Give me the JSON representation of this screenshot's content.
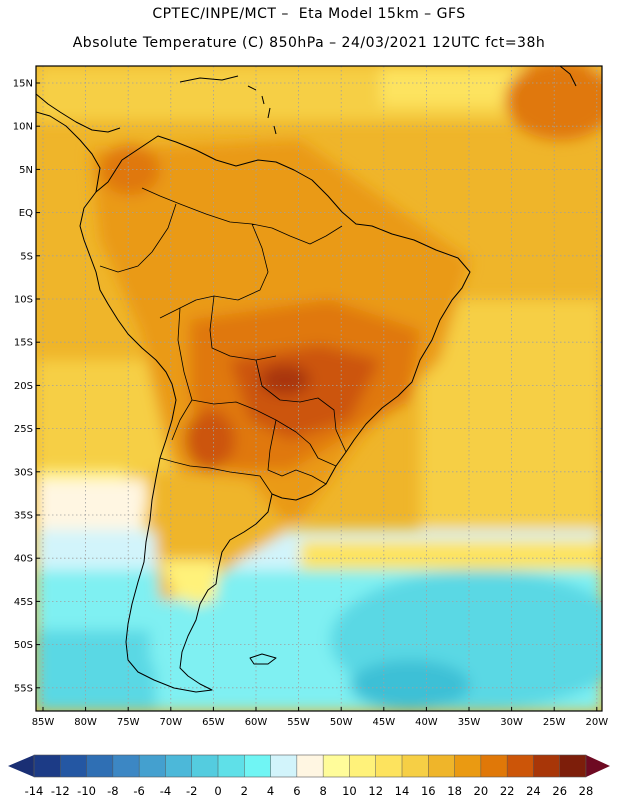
{
  "header": {
    "line1": "CPTEC/INPE/MCT –  Eta Model 15km – GFS",
    "line2": "Absolute Temperature (C) 850hPa – 24/03/2021 12UTC fct=38h"
  },
  "map": {
    "lat_labels": [
      "15N",
      "10N",
      "5N",
      "EQ",
      "5S",
      "10S",
      "15S",
      "20S",
      "25S",
      "30S",
      "35S",
      "40S",
      "45S",
      "50S",
      "55S"
    ],
    "lon_labels": [
      "85W",
      "80W",
      "75W",
      "70W",
      "65W",
      "60W",
      "55W",
      "50W",
      "45W",
      "40W",
      "35W",
      "30W",
      "25W",
      "20W"
    ]
  },
  "colorbar": {
    "ticks": [
      "-14",
      "-12",
      "-10",
      "-8",
      "-6",
      "-4",
      "-2",
      "0",
      "2",
      "4",
      "6",
      "8",
      "10",
      "12",
      "14",
      "16",
      "18",
      "20",
      "22",
      "24",
      "26",
      "28"
    ],
    "colors": [
      "#1c3b86",
      "#2457a3",
      "#2f6fb4",
      "#3c87c4",
      "#44a0cf",
      "#4cb8d9",
      "#54ccdf",
      "#5fe0e8",
      "#70f5f4",
      "#d2f4fb",
      "#fff6e2",
      "#fffc9a",
      "#fff27a",
      "#fde35e",
      "#f6cf45",
      "#efb52a",
      "#ea9a12",
      "#e07808",
      "#cc5508",
      "#a83608",
      "#7d1e0a"
    ],
    "low_color": "#1a2f74",
    "high_color": "#6e0a22"
  },
  "field_colors": {
    "deep_ocean": "#3ec0d6",
    "cold_ocean": "#5ad8e4",
    "cool_water": "#7ff0f2",
    "pale_blue": "#d2f4fb",
    "cream": "#fff6e2",
    "light_yellow": "#fff27a",
    "yellow": "#fde35e",
    "gold": "#f6cf45",
    "amber": "#efb52a",
    "orange": "#ea9a12",
    "dark_orange": "#e07808",
    "red_orange": "#cc5508",
    "brown_red": "#a83608",
    "grid_color": "#a0a0a0",
    "land_outline": "#000000"
  }
}
